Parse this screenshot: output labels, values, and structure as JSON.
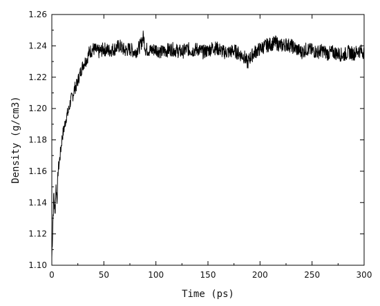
{
  "chart_data": {
    "type": "line",
    "title": "",
    "xlabel": "Time (ps)",
    "ylabel": "Density (g/cm3)",
    "xlim": [
      0,
      300
    ],
    "ylim": [
      1.1,
      1.26
    ],
    "x_ticks": [
      0,
      50,
      100,
      150,
      200,
      250,
      300
    ],
    "x_tick_labels": [
      "0",
      "50",
      "100",
      "150",
      "200",
      "250",
      "300"
    ],
    "y_ticks": [
      1.1,
      1.12,
      1.14,
      1.16,
      1.18,
      1.2,
      1.22,
      1.24,
      1.26
    ],
    "y_tick_labels": [
      "1.10",
      "1.12",
      "1.14",
      "1.16",
      "1.18",
      "1.20",
      "1.22",
      "1.24",
      "1.26"
    ],
    "grid": false,
    "legend": "none",
    "line_color": "#000000",
    "series": [
      {
        "x": [
          0,
          1,
          2,
          3,
          4,
          5,
          6,
          8,
          10,
          12,
          14,
          16,
          18,
          20,
          22,
          24,
          26,
          28,
          30,
          32,
          34,
          36,
          38,
          40,
          45,
          50,
          55,
          60,
          65,
          70,
          75,
          80,
          85,
          88,
          90,
          95,
          100,
          105,
          110,
          115,
          120,
          125,
          130,
          135,
          140,
          145,
          150,
          155,
          160,
          165,
          170,
          175,
          180,
          185,
          188,
          190,
          195,
          200,
          205,
          210,
          215,
          220,
          225,
          230,
          235,
          240,
          245,
          250,
          255,
          260,
          265,
          270,
          275,
          280,
          285,
          290,
          295,
          300
        ],
        "y": [
          1.105,
          1.128,
          1.145,
          1.132,
          1.15,
          1.142,
          1.16,
          1.17,
          1.182,
          1.188,
          1.195,
          1.198,
          1.205,
          1.208,
          1.213,
          1.215,
          1.22,
          1.224,
          1.228,
          1.23,
          1.232,
          1.236,
          1.237,
          1.238,
          1.236,
          1.238,
          1.237,
          1.238,
          1.24,
          1.237,
          1.238,
          1.236,
          1.24,
          1.246,
          1.238,
          1.237,
          1.238,
          1.236,
          1.237,
          1.238,
          1.237,
          1.236,
          1.238,
          1.237,
          1.238,
          1.236,
          1.237,
          1.239,
          1.238,
          1.236,
          1.236,
          1.237,
          1.235,
          1.233,
          1.229,
          1.232,
          1.236,
          1.238,
          1.24,
          1.241,
          1.242,
          1.24,
          1.241,
          1.24,
          1.238,
          1.236,
          1.238,
          1.237,
          1.236,
          1.237,
          1.235,
          1.236,
          1.235,
          1.234,
          1.236,
          1.235,
          1.237,
          1.236
        ]
      }
    ]
  }
}
